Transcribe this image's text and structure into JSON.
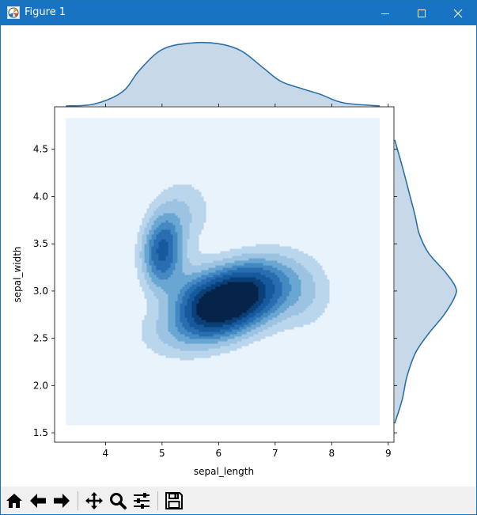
{
  "window": {
    "title": "Figure 1",
    "title_icon": "matplotlib-figure-icon",
    "controls": [
      "minimize-icon",
      "maximize-icon",
      "close-icon"
    ]
  },
  "toolbar": {
    "buttons": [
      {
        "name": "home-button",
        "icon": "home-icon"
      },
      {
        "name": "back-button",
        "icon": "arrow-left-icon"
      },
      {
        "name": "forward-button",
        "icon": "arrow-right-icon"
      },
      {
        "name": "pan-button",
        "icon": "move-icon"
      },
      {
        "name": "zoom-button",
        "icon": "magnifier-icon"
      },
      {
        "name": "configure-subplots-button",
        "icon": "sliders-icon"
      },
      {
        "name": "save-button",
        "icon": "floppy-disk-icon"
      }
    ]
  },
  "chart_data": {
    "type": "heatmap",
    "kind": "joint kde plot",
    "xlabel": "sepal_length",
    "ylabel": "sepal_width",
    "xlim": [
      3.1,
      9.1
    ],
    "ylim": [
      1.4,
      4.95
    ],
    "xticks": [
      "4",
      "5",
      "6",
      "7",
      "8",
      "9"
    ],
    "yticks": [
      "1.5",
      "2.0",
      "2.5",
      "3.0",
      "3.5",
      "4.0",
      "4.5"
    ],
    "kde_extent": {
      "x": [
        3.3,
        8.85
      ],
      "y": [
        1.58,
        4.83
      ]
    },
    "density_peaks": [
      {
        "x": 6.1,
        "y": 2.9,
        "level": "highest"
      },
      {
        "x": 5.0,
        "y": 3.4,
        "level": "high"
      }
    ],
    "marginal_x": {
      "x": [
        3.3,
        3.8,
        4.3,
        4.6,
        5.0,
        5.5,
        6.0,
        6.4,
        6.8,
        7.1,
        7.5,
        7.8,
        8.2,
        8.85
      ],
      "density": [
        0.0,
        0.03,
        0.22,
        0.55,
        0.87,
        0.97,
        0.96,
        0.85,
        0.58,
        0.38,
        0.26,
        0.18,
        0.05,
        0.0
      ]
    },
    "marginal_y": {
      "y": [
        1.6,
        1.85,
        2.1,
        2.35,
        2.55,
        2.75,
        2.95,
        3.05,
        3.2,
        3.4,
        3.6,
        3.8,
        4.0,
        4.3,
        4.6
      ],
      "density": [
        0.0,
        0.12,
        0.2,
        0.34,
        0.55,
        0.8,
        0.98,
        0.98,
        0.82,
        0.55,
        0.4,
        0.33,
        0.25,
        0.13,
        0.0
      ]
    },
    "colors": {
      "base": "#e9f3fc",
      "levels": [
        "#bad6ec",
        "#9cc3e2",
        "#6aa6d2",
        "#4589c3",
        "#286eb0",
        "#16599c",
        "#0b3f77",
        "#06244a"
      ],
      "marginal_line": "#2c71a6",
      "marginal_fill": "#c7d8e8"
    }
  }
}
